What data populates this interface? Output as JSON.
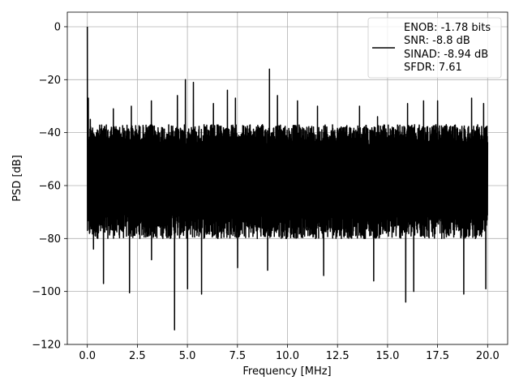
{
  "chart_data": {
    "type": "line",
    "title": "",
    "xlabel": "Frequency [MHz]",
    "ylabel": "PSD [dB]",
    "xlim": [
      -1.0,
      21.0
    ],
    "ylim": [
      -120.0,
      5.5
    ],
    "x_ticks": [
      0.0,
      2.5,
      5.0,
      7.5,
      10.0,
      12.5,
      15.0,
      17.5,
      20.0
    ],
    "x_tick_labels": [
      "0.0",
      "2.5",
      "5.0",
      "7.5",
      "10.0",
      "12.5",
      "15.0",
      "17.5",
      "20.0"
    ],
    "y_ticks": [
      0,
      -20,
      -40,
      -60,
      -80,
      -100,
      -120
    ],
    "y_tick_labels": [
      "0",
      "−20",
      "−40",
      "−60",
      "−80",
      "−100",
      "−120"
    ],
    "grid": true,
    "legend": {
      "placement": "upper right",
      "entries": [
        "ENOB: -1.78 bits",
        "SNR: -8.8 dB",
        "SINAD: -8.94 dB",
        "SFDR: 7.61"
      ]
    },
    "series": [
      {
        "color": "#000000",
        "noise_floor_band_db": [
          -80,
          -37
        ],
        "noise_floor_median_db": -60,
        "peaks": [
          {
            "x": 0.0,
            "y": 0
          },
          {
            "x": 0.05,
            "y": -27
          },
          {
            "x": 0.15,
            "y": -35
          },
          {
            "x": 1.3,
            "y": -31
          },
          {
            "x": 2.2,
            "y": -30
          },
          {
            "x": 3.2,
            "y": -28
          },
          {
            "x": 4.5,
            "y": -26
          },
          {
            "x": 4.9,
            "y": -20
          },
          {
            "x": 5.3,
            "y": -21
          },
          {
            "x": 6.3,
            "y": -29
          },
          {
            "x": 7.0,
            "y": -24
          },
          {
            "x": 7.4,
            "y": -27
          },
          {
            "x": 9.1,
            "y": -16
          },
          {
            "x": 9.5,
            "y": -26
          },
          {
            "x": 10.5,
            "y": -28
          },
          {
            "x": 11.5,
            "y": -30
          },
          {
            "x": 13.6,
            "y": -30
          },
          {
            "x": 14.5,
            "y": -34
          },
          {
            "x": 16.0,
            "y": -29
          },
          {
            "x": 16.8,
            "y": -28
          },
          {
            "x": 17.5,
            "y": -28
          },
          {
            "x": 19.2,
            "y": -27
          },
          {
            "x": 19.8,
            "y": -29
          }
        ],
        "troughs": [
          {
            "x": 0.3,
            "y": -84
          },
          {
            "x": 0.8,
            "y": -97
          },
          {
            "x": 2.1,
            "y": -100.5
          },
          {
            "x": 3.2,
            "y": -88
          },
          {
            "x": 4.35,
            "y": -114.5
          },
          {
            "x": 5.0,
            "y": -99
          },
          {
            "x": 5.7,
            "y": -101
          },
          {
            "x": 7.5,
            "y": -91
          },
          {
            "x": 9.0,
            "y": -92
          },
          {
            "x": 11.8,
            "y": -94
          },
          {
            "x": 14.3,
            "y": -96
          },
          {
            "x": 15.9,
            "y": -104
          },
          {
            "x": 16.3,
            "y": -100
          },
          {
            "x": 18.8,
            "y": -101
          },
          {
            "x": 19.9,
            "y": -99
          }
        ]
      }
    ]
  }
}
